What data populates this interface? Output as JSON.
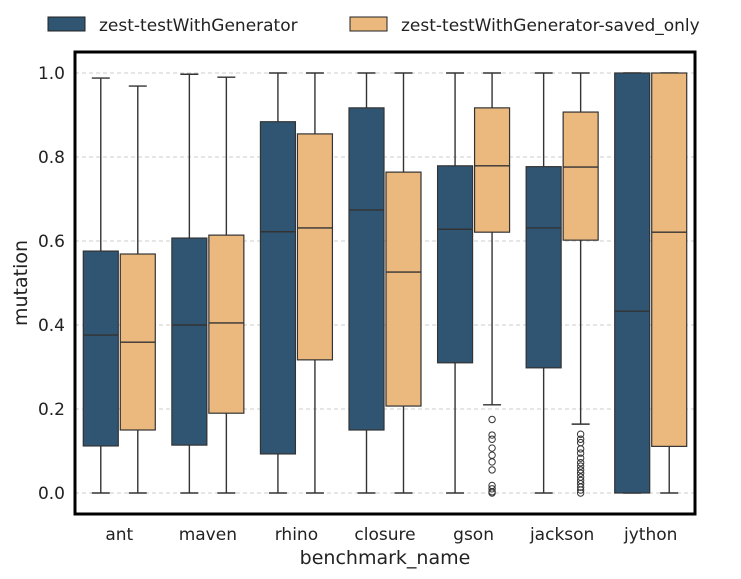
{
  "chart_data": {
    "type": "box",
    "xlabel": "benchmark_name",
    "ylabel": "mutation",
    "ylim": [
      -0.05,
      1.05
    ],
    "yticks": [
      "0.0",
      "0.2",
      "0.4",
      "0.6",
      "0.8",
      "1.0"
    ],
    "grid": "horizontal dashed",
    "legend": "top, outside plot",
    "categories": [
      "ant",
      "maven",
      "rhino",
      "closure",
      "gson",
      "jackson",
      "jython"
    ],
    "series": [
      {
        "name": "zest-testWithGenerator",
        "color": "#2f5573",
        "boxes": [
          {
            "whisker_low": 0.0,
            "q1": 0.112,
            "median": 0.376,
            "q3": 0.576,
            "whisker_high": 0.988,
            "outliers": []
          },
          {
            "whisker_low": 0.0,
            "q1": 0.114,
            "median": 0.4,
            "q3": 0.607,
            "whisker_high": 0.997,
            "outliers": []
          },
          {
            "whisker_low": 0.0,
            "q1": 0.093,
            "median": 0.622,
            "q3": 0.884,
            "whisker_high": 1.0,
            "outliers": []
          },
          {
            "whisker_low": 0.0,
            "q1": 0.15,
            "median": 0.674,
            "q3": 0.917,
            "whisker_high": 1.0,
            "outliers": []
          },
          {
            "whisker_low": 0.0,
            "q1": 0.31,
            "median": 0.628,
            "q3": 0.779,
            "whisker_high": 1.0,
            "outliers": []
          },
          {
            "whisker_low": 0.0,
            "q1": 0.298,
            "median": 0.631,
            "q3": 0.777,
            "whisker_high": 1.0,
            "outliers": []
          },
          {
            "whisker_low": 0.0,
            "q1": 0.0,
            "median": 0.433,
            "q3": 1.0,
            "whisker_high": 1.0,
            "outliers": []
          }
        ]
      },
      {
        "name": "zest-testWithGenerator-saved_only",
        "color": "#ebb97e",
        "boxes": [
          {
            "whisker_low": 0.0,
            "q1": 0.15,
            "median": 0.359,
            "q3": 0.569,
            "whisker_high": 0.969,
            "outliers": []
          },
          {
            "whisker_low": 0.0,
            "q1": 0.19,
            "median": 0.405,
            "q3": 0.614,
            "whisker_high": 0.99,
            "outliers": []
          },
          {
            "whisker_low": 0.0,
            "q1": 0.317,
            "median": 0.631,
            "q3": 0.855,
            "whisker_high": 1.0,
            "outliers": []
          },
          {
            "whisker_low": 0.0,
            "q1": 0.207,
            "median": 0.526,
            "q3": 0.764,
            "whisker_high": 1.0,
            "outliers": []
          },
          {
            "whisker_low": 0.21,
            "q1": 0.621,
            "median": 0.779,
            "q3": 0.917,
            "whisker_high": 1.0,
            "outliers": [
              0.175,
              0.138,
              0.128,
              0.107,
              0.09,
              0.074,
              0.055,
              0.018,
              0.01,
              0.003,
              0.0
            ]
          },
          {
            "whisker_low": 0.164,
            "q1": 0.602,
            "median": 0.776,
            "q3": 0.907,
            "whisker_high": 1.0,
            "outliers": [
              0.14,
              0.128,
              0.12,
              0.105,
              0.095,
              0.083,
              0.072,
              0.064,
              0.055,
              0.047,
              0.038,
              0.03,
              0.022,
              0.014,
              0.007,
              0.0
            ]
          },
          {
            "whisker_low": 0.0,
            "q1": 0.111,
            "median": 0.621,
            "q3": 1.0,
            "whisker_high": 1.0,
            "outliers": []
          }
        ]
      }
    ]
  }
}
